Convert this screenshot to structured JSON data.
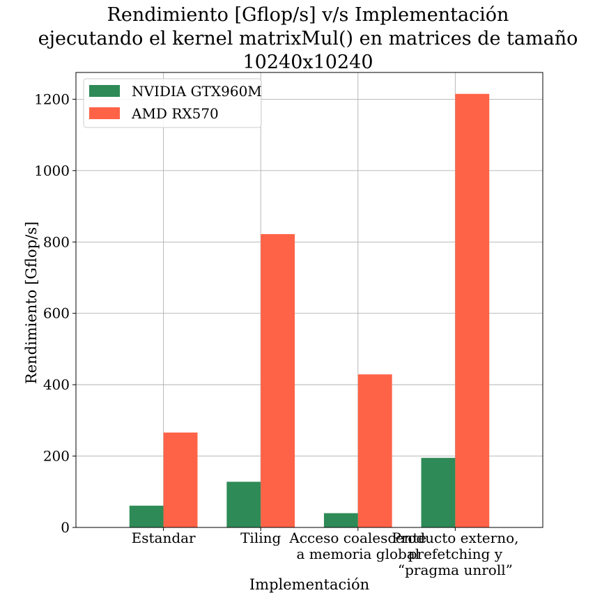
{
  "chart_data": {
    "type": "bar",
    "title_lines": [
      "Rendimiento [Gflop/s] v/s Implementación",
      "ejecutando el kernel matrixMul() en matrices de tamaño",
      "10240x10240"
    ],
    "xlabel": "Implementación",
    "ylabel": "Rendimiento [Gflop/s]",
    "categories": [
      [
        "Estandar"
      ],
      [
        "Tiling"
      ],
      [
        "Acceso coalescente",
        "a memoria global"
      ],
      [
        "Producto externo,",
        "prefetching y",
        "“pragma unroll”"
      ]
    ],
    "series": [
      {
        "name": "NVIDIA GTX960M",
        "color": "#2e8b57",
        "values": [
          61,
          128,
          40,
          195
        ]
      },
      {
        "name": "AMD RX570",
        "color": "#ff6347",
        "values": [
          266,
          822,
          429,
          1215
        ]
      }
    ],
    "ylim": [
      0,
      1275
    ],
    "yticks": [
      0,
      200,
      400,
      600,
      800,
      1000,
      1200
    ],
    "grid": true,
    "legend_position": "top-left"
  }
}
